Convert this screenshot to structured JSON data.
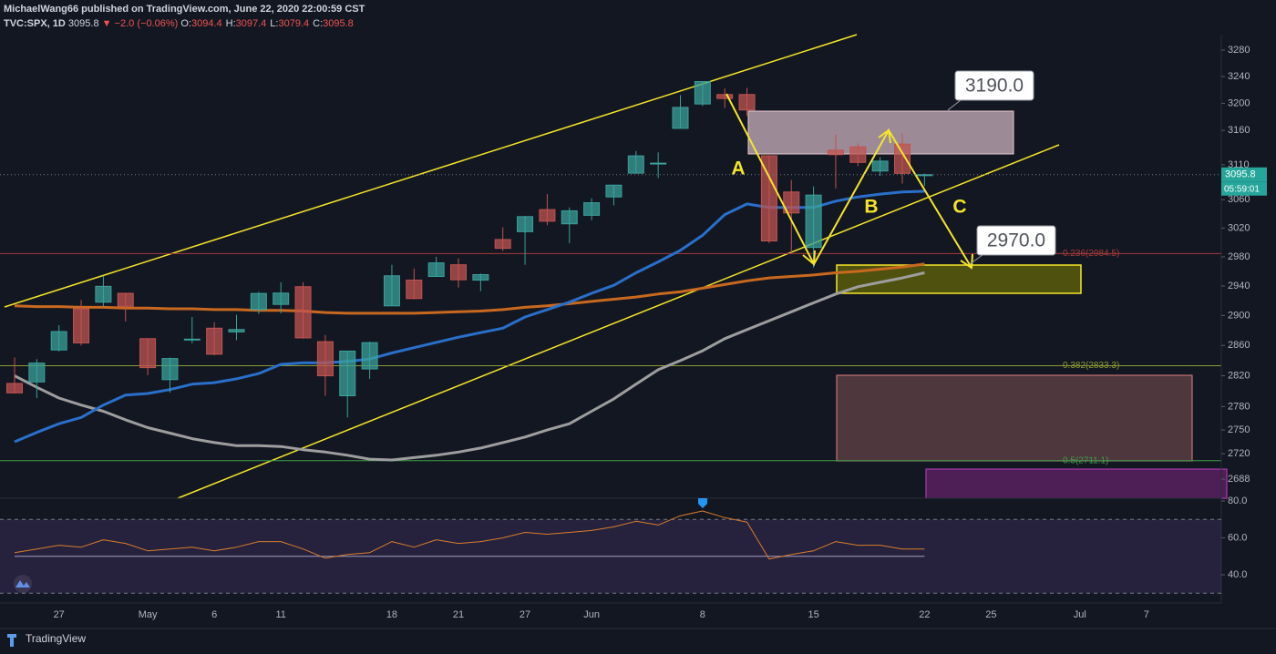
{
  "header": {
    "author_line": "MichaelWang66 published on TradingView.com, June 22, 2020 22:00:59 CST",
    "symbol": "TVC:SPX, 1D",
    "price": "3095.8",
    "change": "▼ −2.0 (−0.06%)",
    "ohlc": [
      {
        "k": "O:",
        "v": "3094.4"
      },
      {
        "k": "H:",
        "v": "3097.4"
      },
      {
        "k": "L:",
        "v": "3079.4"
      },
      {
        "k": "C:",
        "v": "3095.8"
      }
    ]
  },
  "footer": {
    "brand": "TradingView"
  },
  "chart_data": {
    "type": "candlestick",
    "log": true,
    "grid": false,
    "up_color": "#3aa19b",
    "down_color": "#c05450",
    "categories": [
      null,
      null,
      "27",
      null,
      null,
      null,
      "May",
      null,
      null,
      "6",
      null,
      null,
      "11",
      null,
      null,
      null,
      null,
      "18",
      null,
      null,
      "21",
      null,
      null,
      "27",
      null,
      null,
      "Jun",
      null,
      null,
      null,
      null,
      "8",
      null,
      null,
      null,
      null,
      "15",
      null,
      null,
      null,
      null,
      "22",
      null,
      null,
      "25",
      null,
      null,
      null,
      "Jul",
      null,
      null,
      "7",
      null,
      null,
      null
    ],
    "open": [
      2810,
      2812,
      2854,
      2909,
      2918,
      2930,
      2869,
      2815,
      2868,
      2883,
      2878,
      2908,
      2915,
      2939,
      2865,
      2794,
      2829,
      2913,
      2948,
      2953,
      2969,
      2948,
      3004,
      3015,
      3046,
      3026,
      3038,
      3064,
      3098,
      3112,
      3163,
      3199,
      3213,
      3213,
      3123,
      3071,
      2993,
      3131,
      3136,
      3101,
      3140,
      3094.4,
      null,
      null,
      null,
      null,
      null,
      null,
      null,
      null,
      null,
      null,
      null,
      null,
      null
    ],
    "high": [
      2844,
      2842,
      2887,
      2921,
      2954,
      2930,
      2869,
      2844,
      2898,
      2891,
      2901,
      2932,
      2945,
      2945,
      2874,
      2853,
      2865,
      2969,
      2964,
      2980,
      2978,
      2957,
      3021,
      3037,
      3068,
      3049,
      3062,
      3081,
      3130,
      3128,
      3212,
      3233,
      3222,
      3223,
      3123,
      3088,
      3079,
      3154,
      3141,
      3121,
      3155,
      3097.4,
      null,
      null,
      null,
      null,
      null,
      null,
      null,
      null,
      null,
      null,
      null,
      null,
      null
    ],
    "low": [
      2797,
      2791,
      2852,
      2860,
      2912,
      2892,
      2821,
      2798,
      2863,
      2847,
      2867,
      2902,
      2903,
      2869,
      2794,
      2766,
      2816,
      2913,
      2922,
      2953,
      2938,
      2933,
      2988,
      2969,
      3024,
      2999,
      3031,
      3052,
      3098,
      3091,
      3163,
      3196,
      3193,
      3181,
      2999,
      2984,
      2965,
      3076,
      3108,
      3094,
      3083,
      3079.4,
      null,
      null,
      null,
      null,
      null,
      null,
      null,
      null,
      null,
      null,
      null,
      null,
      null
    ],
    "close": [
      2797.8,
      2836.7,
      2878.5,
      2863.4,
      2939.5,
      2912.4,
      2830.7,
      2842.7,
      2868.4,
      2848.4,
      2881.2,
      2929.8,
      2930.3,
      2870.1,
      2820.0,
      2852.5,
      2863.7,
      2953.9,
      2922.9,
      2971.6,
      2948.5,
      2955.5,
      2991.8,
      3036.1,
      3029.7,
      3044.3,
      3055.7,
      3080.8,
      3122.9,
      3112.4,
      3193.9,
      3232.4,
      3207.2,
      3190.1,
      3002.1,
      3041.3,
      3066.6,
      3124.7,
      3113.5,
      3115.3,
      3097.7,
      3095.8,
      null,
      null,
      null,
      null,
      null,
      null,
      null,
      null,
      null,
      null,
      null,
      null,
      null
    ],
    "lines": [
      {
        "color": "#9e9e9e",
        "values": [
          2820,
          2805,
          2791,
          2782,
          2774,
          2763,
          2753,
          2746,
          2739,
          2734,
          2730,
          2730,
          2729,
          2725,
          2722,
          2718,
          2713,
          2712,
          2715,
          2718,
          2722,
          2727,
          2734,
          2741,
          2750,
          2758,
          2774,
          2790,
          2809,
          2828,
          2840,
          2853,
          2869,
          2881,
          2893,
          2905,
          2917,
          2929,
          2939,
          2945,
          2951,
          2958,
          null,
          null,
          null,
          null,
          null,
          null,
          null,
          null,
          null,
          null,
          null,
          null,
          null
        ]
      },
      {
        "color": "#c9691f",
        "values": [
          2913,
          2912,
          2912,
          2911,
          2911,
          2910,
          2910,
          2909,
          2909,
          2908,
          2908,
          2907,
          2907,
          2906,
          2904,
          2903,
          2903,
          2903,
          2903,
          2904,
          2905,
          2906,
          2908,
          2911,
          2913,
          2916,
          2919,
          2922,
          2925,
          2929,
          2932,
          2937,
          2942,
          2947,
          2951,
          2953,
          2955,
          2958,
          2960,
          2963,
          2966,
          2970,
          null,
          null,
          null,
          null,
          null,
          null,
          null,
          null,
          null,
          null,
          null,
          null,
          null
        ]
      },
      {
        "color": "#2a6fc9",
        "values": [
          2735,
          2747,
          2758,
          2766,
          2782,
          2795,
          2797,
          2802,
          2809,
          2811,
          2816,
          2823,
          2835,
          2837,
          2837,
          2839,
          2842,
          2850,
          2857,
          2864,
          2871,
          2877,
          2883,
          2898,
          2908,
          2918,
          2930,
          2941,
          2958,
          2973,
          2989,
          3010,
          3039,
          3054,
          3049,
          3049,
          3049,
          3058,
          3064,
          3068,
          3071,
          3072,
          null,
          null,
          null,
          null,
          null,
          null,
          null,
          null,
          null,
          null,
          null,
          null,
          null
        ]
      }
    ],
    "ylim": [
      2664.3,
      3303.6
    ],
    "yticks": [
      3280,
      3240,
      3200,
      3160,
      3110,
      3060,
      3020,
      2980,
      2940,
      2900,
      2860,
      2820,
      2780,
      2750,
      2720,
      2688
    ],
    "fib": [
      {
        "label": "0.236(2984.5)",
        "value": 2984.5,
        "color": "#a83a3a"
      },
      {
        "label": "0.382(2833.3)",
        "value": 2833.3,
        "color": "#8c9a30"
      },
      {
        "label": "0.5(2711.1)",
        "value": 2711.1,
        "color": "#3f9e48"
      }
    ],
    "last_price": 3095.8,
    "countdown": "05:59:01",
    "wave_labels": [
      "A",
      "B",
      "C"
    ],
    "callouts": [
      {
        "value": 3190,
        "label": "3190.0"
      },
      {
        "value": 2970,
        "label": "2970.0"
      }
    ],
    "rsi": {
      "color": "#d97c2a",
      "values": [
        52,
        54,
        56,
        55,
        59,
        57,
        53,
        54,
        55,
        53,
        55,
        58,
        58,
        54,
        49,
        51,
        52,
        58,
        55,
        59,
        57,
        58,
        60,
        63,
        62,
        63,
        64,
        66,
        69,
        67,
        72,
        74.6,
        71,
        68.5,
        48.5,
        51,
        53,
        58,
        56,
        56,
        54,
        54,
        null,
        null,
        null,
        null,
        null,
        null,
        null,
        null,
        null,
        null,
        null,
        null,
        null
      ],
      "ylim": [
        24.7,
        81.5
      ],
      "yticks": [
        {
          "value": 80,
          "label": "80.0"
        },
        {
          "value": 60,
          "label": "60.0"
        },
        {
          "value": 40,
          "label": "40.0"
        }
      ],
      "levels": [
        70,
        50,
        30
      ]
    }
  }
}
